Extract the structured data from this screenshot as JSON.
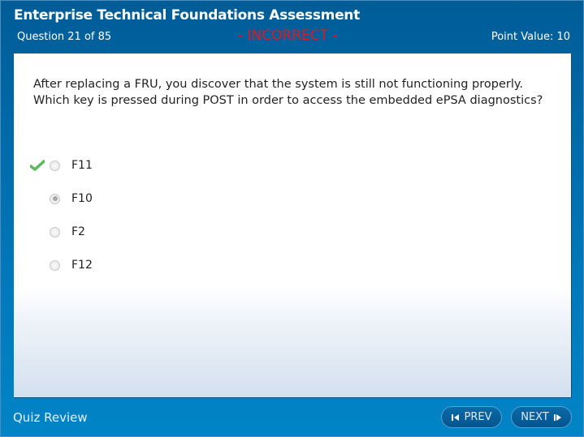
{
  "header": {
    "title": "Enterprise Technical Foundations Assessment",
    "question_counter": "Question 21 of 85",
    "result_status": "- INCORRECT -",
    "point_value": "Point Value:  10"
  },
  "question": {
    "text": "After replacing a FRU, you discover that the system is still not functioning properly. Which key is pressed during POST in order to access the embedded ePSA diagnostics?",
    "options": [
      {
        "label": "F11",
        "selected": false,
        "correct": true
      },
      {
        "label": "F10",
        "selected": true,
        "correct": false
      },
      {
        "label": "F2",
        "selected": false,
        "correct": false
      },
      {
        "label": "F12",
        "selected": false,
        "correct": false
      }
    ]
  },
  "footer": {
    "label": "Quiz Review",
    "prev_label": "PREV",
    "next_label": "NEXT"
  },
  "colors": {
    "header_blue": "#005c96",
    "footer_blue": "#0084c6",
    "incorrect": "#e8141e",
    "check_green": "#5cb85c"
  }
}
